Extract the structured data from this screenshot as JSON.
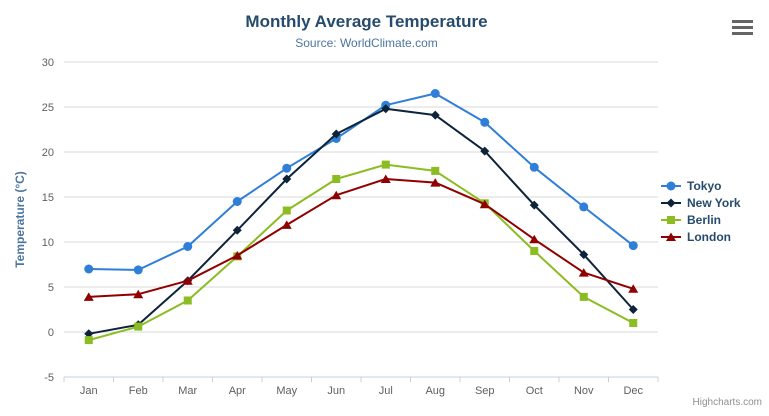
{
  "header": {
    "title": "Monthly Average Temperature",
    "subtitle": "Source: WorldClimate.com"
  },
  "credits": {
    "label": "Highcharts.com"
  },
  "exporting": {
    "icon": "hamburger-icon"
  },
  "palette": {
    "title_color": "#274b6d",
    "subtitle_color": "#4d759e",
    "axis_title_color": "#4d759e",
    "tick_label_color": "#606063",
    "grid_color": "#d8d8d8",
    "axis_line_color": "#c0d0e0",
    "legend_text_color": "#274b6d",
    "credits_color": "#909090",
    "export_icon_color": "#666666"
  },
  "chart_data": {
    "type": "line",
    "title": "Monthly Average Temperature",
    "subtitle": "Source: WorldClimate.com",
    "xlabel": "",
    "ylabel": "Temperature (°C)",
    "ylim": [
      -5,
      30
    ],
    "ytick_step": 5,
    "grid": true,
    "legend_position": "right",
    "categories": [
      "Jan",
      "Feb",
      "Mar",
      "Apr",
      "May",
      "Jun",
      "Jul",
      "Aug",
      "Sep",
      "Oct",
      "Nov",
      "Dec"
    ],
    "series": [
      {
        "name": "Tokyo",
        "color": "#2f7ed8",
        "marker": "circle",
        "values": [
          7.0,
          6.9,
          9.5,
          14.5,
          18.2,
          21.5,
          25.2,
          26.5,
          23.3,
          18.3,
          13.9,
          9.6
        ]
      },
      {
        "name": "New York",
        "color": "#0d233a",
        "marker": "diamond",
        "values": [
          -0.2,
          0.8,
          5.7,
          11.3,
          17.0,
          22.0,
          24.8,
          24.1,
          20.1,
          14.1,
          8.6,
          2.5
        ]
      },
      {
        "name": "Berlin",
        "color": "#8bbc21",
        "marker": "square",
        "values": [
          -0.9,
          0.6,
          3.5,
          8.4,
          13.5,
          17.0,
          18.6,
          17.9,
          14.3,
          9.0,
          3.9,
          1.0
        ]
      },
      {
        "name": "London",
        "color": "#910000",
        "marker": "triangle",
        "values": [
          3.9,
          4.2,
          5.7,
          8.5,
          11.9,
          15.2,
          17.0,
          16.6,
          14.2,
          10.3,
          6.6,
          4.8
        ]
      }
    ]
  }
}
